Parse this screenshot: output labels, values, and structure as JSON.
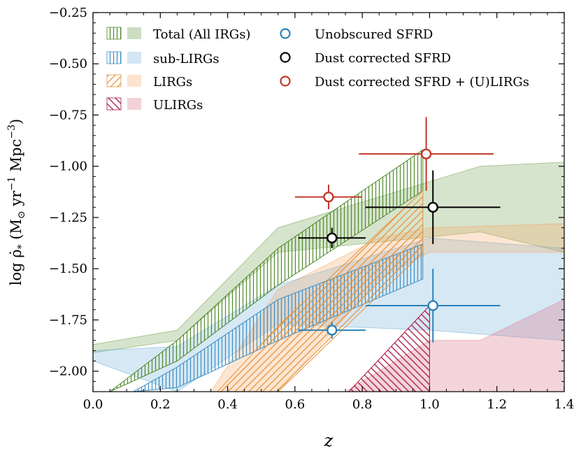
{
  "chart_data": {
    "type": "area",
    "xlabel": "z",
    "ylabel_parts": {
      "main": "log ρ̇",
      "sub": "*",
      "units_open": " (M",
      "sun": "⊙",
      "yr": " yr",
      "exp1": "−1",
      "mpc": " Mpc",
      "exp3": "−3",
      "units_close": ")"
    },
    "xlim": [
      0.0,
      1.4
    ],
    "ylim": [
      -2.1,
      -0.25
    ],
    "x_ticks": [
      0.0,
      0.2,
      0.4,
      0.6,
      0.8,
      1.0,
      1.2,
      1.4
    ],
    "x_tick_labels": [
      "0.0",
      "0.2",
      "0.4",
      "0.6",
      "0.8",
      "1.0",
      "1.2",
      "1.4"
    ],
    "y_ticks": [
      -2.0,
      -1.75,
      -1.5,
      -1.25,
      -1.0,
      -0.75,
      -0.5,
      -0.25
    ],
    "y_tick_labels": [
      "−2.00",
      "−1.75",
      "−1.50",
      "−1.25",
      "−1.00",
      "−0.75",
      "−0.50",
      "−0.25"
    ],
    "bands": [
      {
        "name": "Total (All IRGs)",
        "color": "#6e9e4a",
        "x": [
          0.0,
          0.25,
          0.55,
          1.15,
          1.4
        ],
        "lower": [
          -1.91,
          -1.85,
          -1.42,
          -1.32,
          -1.42
        ],
        "upper": [
          -1.87,
          -1.8,
          -1.3,
          -1.0,
          -0.98
        ]
      },
      {
        "name": "sub-LIRGs",
        "color": "#6baed6",
        "x": [
          0.0,
          0.25,
          0.55,
          1.0,
          1.4
        ],
        "lower": [
          -1.95,
          -2.1,
          -1.77,
          -1.8,
          -1.85
        ],
        "upper": [
          -1.9,
          -1.88,
          -1.58,
          -1.35,
          -1.4
        ]
      },
      {
        "name": "LIRGs",
        "color": "#f4a460",
        "x": [
          0.35,
          0.55,
          0.85,
          1.0,
          1.4
        ],
        "lower": [
          -2.1,
          -2.1,
          -1.55,
          -1.42,
          -1.42
        ],
        "upper": [
          -2.1,
          -1.6,
          -1.35,
          -1.3,
          -1.28
        ]
      },
      {
        "name": "ULIRGs",
        "color": "#d97a90",
        "x": [
          0.75,
          1.0,
          1.15,
          1.4
        ],
        "lower": [
          -2.1,
          -2.1,
          -2.1,
          -2.1
        ],
        "upper": [
          -2.1,
          -1.85,
          -1.85,
          -1.65
        ]
      }
    ],
    "hatched": [
      {
        "name": "Total (All IRGs)",
        "color": "#4f8a2a",
        "angle": 0,
        "x": [
          0.05,
          0.25,
          0.55,
          0.98
        ],
        "lower": [
          -2.1,
          -1.95,
          -1.58,
          -1.12
        ],
        "upper": [
          -2.1,
          -1.85,
          -1.4,
          -0.92
        ]
      },
      {
        "name": "sub-LIRGs",
        "color": "#3a8ec4",
        "angle": 0,
        "x": [
          0.12,
          0.25,
          0.55,
          0.98
        ],
        "lower": [
          -2.1,
          -2.08,
          -1.85,
          -1.55
        ],
        "upper": [
          -2.1,
          -1.98,
          -1.65,
          -1.38
        ]
      },
      {
        "name": "LIRGs",
        "color": "#e8923a",
        "angle": 45,
        "x": [
          0.37,
          0.55,
          0.98
        ],
        "lower": [
          -2.1,
          -2.1,
          -1.42
        ],
        "upper": [
          -2.1,
          -1.78,
          -1.12
        ]
      },
      {
        "name": "ULIRGs",
        "color": "#a8123e",
        "angle": -45,
        "x": [
          0.76,
          1.0
        ],
        "lower": [
          -2.1,
          -2.1
        ],
        "upper": [
          -2.1,
          -1.68
        ]
      }
    ],
    "points": [
      {
        "series": "Unobscured SFRD",
        "color": "#2b83ba",
        "face": "#ffffff",
        "x": [
          0.71,
          1.01
        ],
        "y": [
          -1.8,
          -1.68
        ],
        "xerr": [
          0.1,
          0.2
        ],
        "yerr": [
          0.04,
          0.18
        ]
      },
      {
        "series": "Dust corrected SFRD",
        "color": "#000000",
        "face": "#ffffff",
        "x": [
          0.71,
          1.01
        ],
        "y": [
          -1.35,
          -1.2
        ],
        "xerr": [
          0.1,
          0.2
        ],
        "yerr": [
          0.05,
          0.18
        ]
      },
      {
        "series": "Dust corrected SFRD + (U)LIRGs",
        "color": "#c0392b",
        "face": "#ffffff",
        "x": [
          0.7,
          0.99
        ],
        "y": [
          -1.15,
          -0.94
        ],
        "xerr": [
          0.1,
          0.2
        ],
        "yerr": [
          0.06,
          0.18
        ]
      }
    ],
    "legend_left": [
      "Total (All IRGs)",
      "sub-LIRGs",
      "LIRGs",
      "ULIRGs"
    ],
    "legend_right": [
      "Unobscured SFRD",
      "Dust corrected SFRD",
      "Dust corrected SFRD + (U)LIRGs"
    ],
    "legend_position": "top-left"
  }
}
